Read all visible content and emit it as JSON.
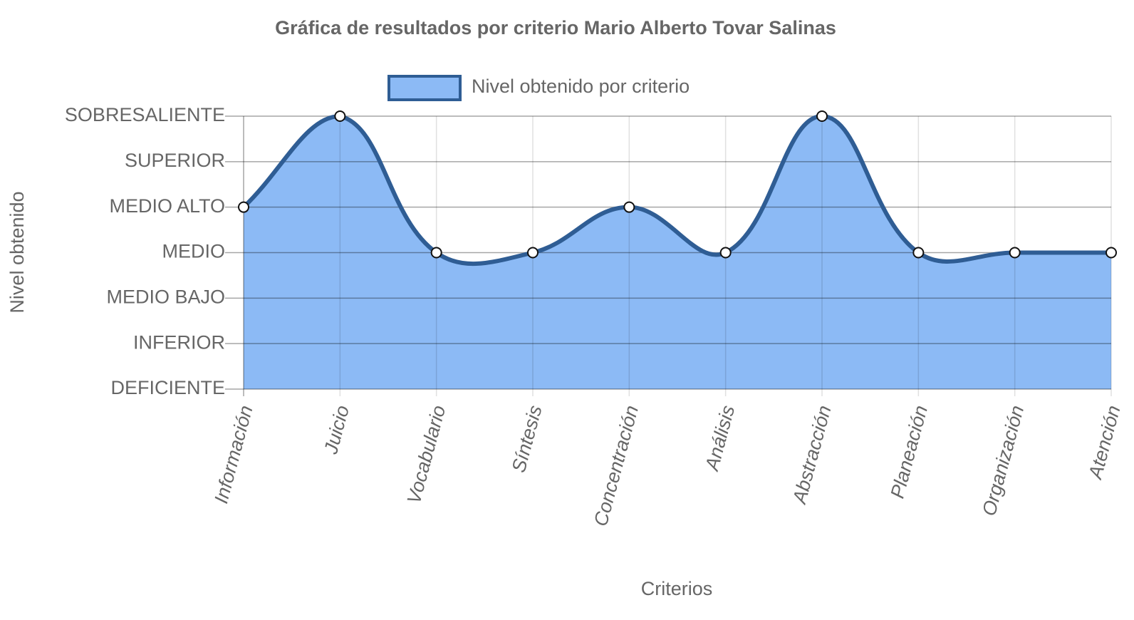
{
  "chart_data": {
    "type": "line",
    "title": "Gráfica de resultados por criterio Mario Alberto Tovar Salinas",
    "x_label": "Criterios",
    "y_label": "Nivel obtenido",
    "categories": [
      "Información",
      "Juicio",
      "Vocabulario",
      "Síntesis",
      "Concentración",
      "Análisis",
      "Abstracción",
      "Planeación",
      "Organización",
      "Atención"
    ],
    "series": [
      {
        "name": "Nivel obtenido por criterio",
        "color": "#2f5d94",
        "fill": "#8cbaf5",
        "values": [
          4,
          6,
          3,
          3,
          4,
          3,
          6,
          3,
          3,
          3
        ]
      }
    ],
    "ylim": [
      0,
      6
    ],
    "yticks": [
      {
        "value": 0,
        "label": "DEFICIENTE"
      },
      {
        "value": 1,
        "label": "INFERIOR"
      },
      {
        "value": 2,
        "label": "MEDIO BAJO"
      },
      {
        "value": 3,
        "label": "MEDIO"
      },
      {
        "value": 4,
        "label": "MEDIO ALTO"
      },
      {
        "value": 5,
        "label": "SUPERIOR"
      },
      {
        "value": 6,
        "label": "SOBRESALIENTE"
      }
    ],
    "grid": true,
    "legend": "top"
  }
}
